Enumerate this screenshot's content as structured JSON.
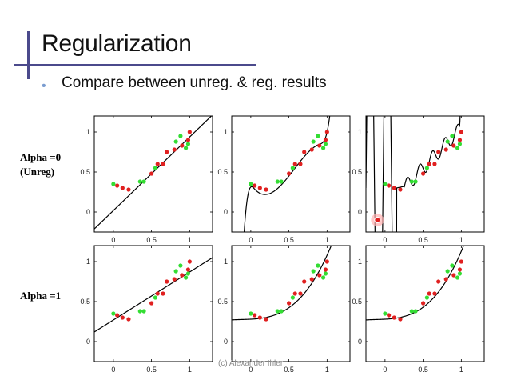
{
  "slide": {
    "title": "Regularization",
    "bullet": "Compare between unreg. & reg. results",
    "footer": "(c) Alexander Ihler"
  },
  "rows": [
    {
      "label_lines": [
        "Alpha =0",
        "(Unreg)"
      ]
    },
    {
      "label_lines": [
        "Alpha =1"
      ]
    }
  ],
  "colors": {
    "train_points": "#e02020",
    "test_points": "#33dd33",
    "fit_curve": "#000000",
    "accent_bar": "#4b4a8c"
  },
  "chart_data": {
    "type": "scatter",
    "x_ticks": [
      0,
      0.5,
      1
    ],
    "y_ticks": [
      0,
      0.5,
      1
    ],
    "xlim": [
      -0.25,
      1.3
    ],
    "ylim": [
      -0.25,
      1.2
    ],
    "red_points": {
      "x": [
        0.05,
        0.12,
        0.2,
        0.5,
        0.58,
        0.65,
        0.7,
        0.8,
        0.9,
        0.98,
        1.0
      ],
      "y": [
        0.33,
        0.3,
        0.28,
        0.48,
        0.6,
        0.6,
        0.75,
        0.78,
        0.83,
        0.9,
        1.0
      ]
    },
    "green_points": {
      "x": [
        0.0,
        0.35,
        0.4,
        0.55,
        0.82,
        0.88,
        0.95,
        0.98
      ],
      "y": [
        0.35,
        0.38,
        0.38,
        0.55,
        0.88,
        0.95,
        0.8,
        0.85
      ]
    },
    "highlight_point": {
      "x": -0.1,
      "y": -0.1
    },
    "panels": [
      {
        "row": 0,
        "col": 0,
        "degree": 1,
        "alpha": 0,
        "fit": "linear",
        "coef": [
          0.018,
          0.92
        ]
      },
      {
        "row": 0,
        "col": 1,
        "degree": 3,
        "alpha": 0,
        "fit": "cubic",
        "coef": [
          0.35,
          -1.5,
          4.8,
          -2.8
        ]
      },
      {
        "row": 0,
        "col": 2,
        "degree": 12,
        "alpha": 0,
        "fit": "wiggly",
        "coef": []
      },
      {
        "row": 1,
        "col": 0,
        "degree": 1,
        "alpha": 1,
        "fit": "linear",
        "coef": [
          0.27,
          0.6
        ]
      },
      {
        "row": 1,
        "col": 1,
        "degree": 3,
        "alpha": 1,
        "fit": "smooth",
        "coef": [
          0.28,
          0.05,
          0.2,
          0.55
        ]
      },
      {
        "row": 1,
        "col": 2,
        "degree": 12,
        "alpha": 1,
        "fit": "smooth",
        "coef": [
          0.28,
          0.05,
          0.2,
          0.6
        ]
      }
    ]
  }
}
